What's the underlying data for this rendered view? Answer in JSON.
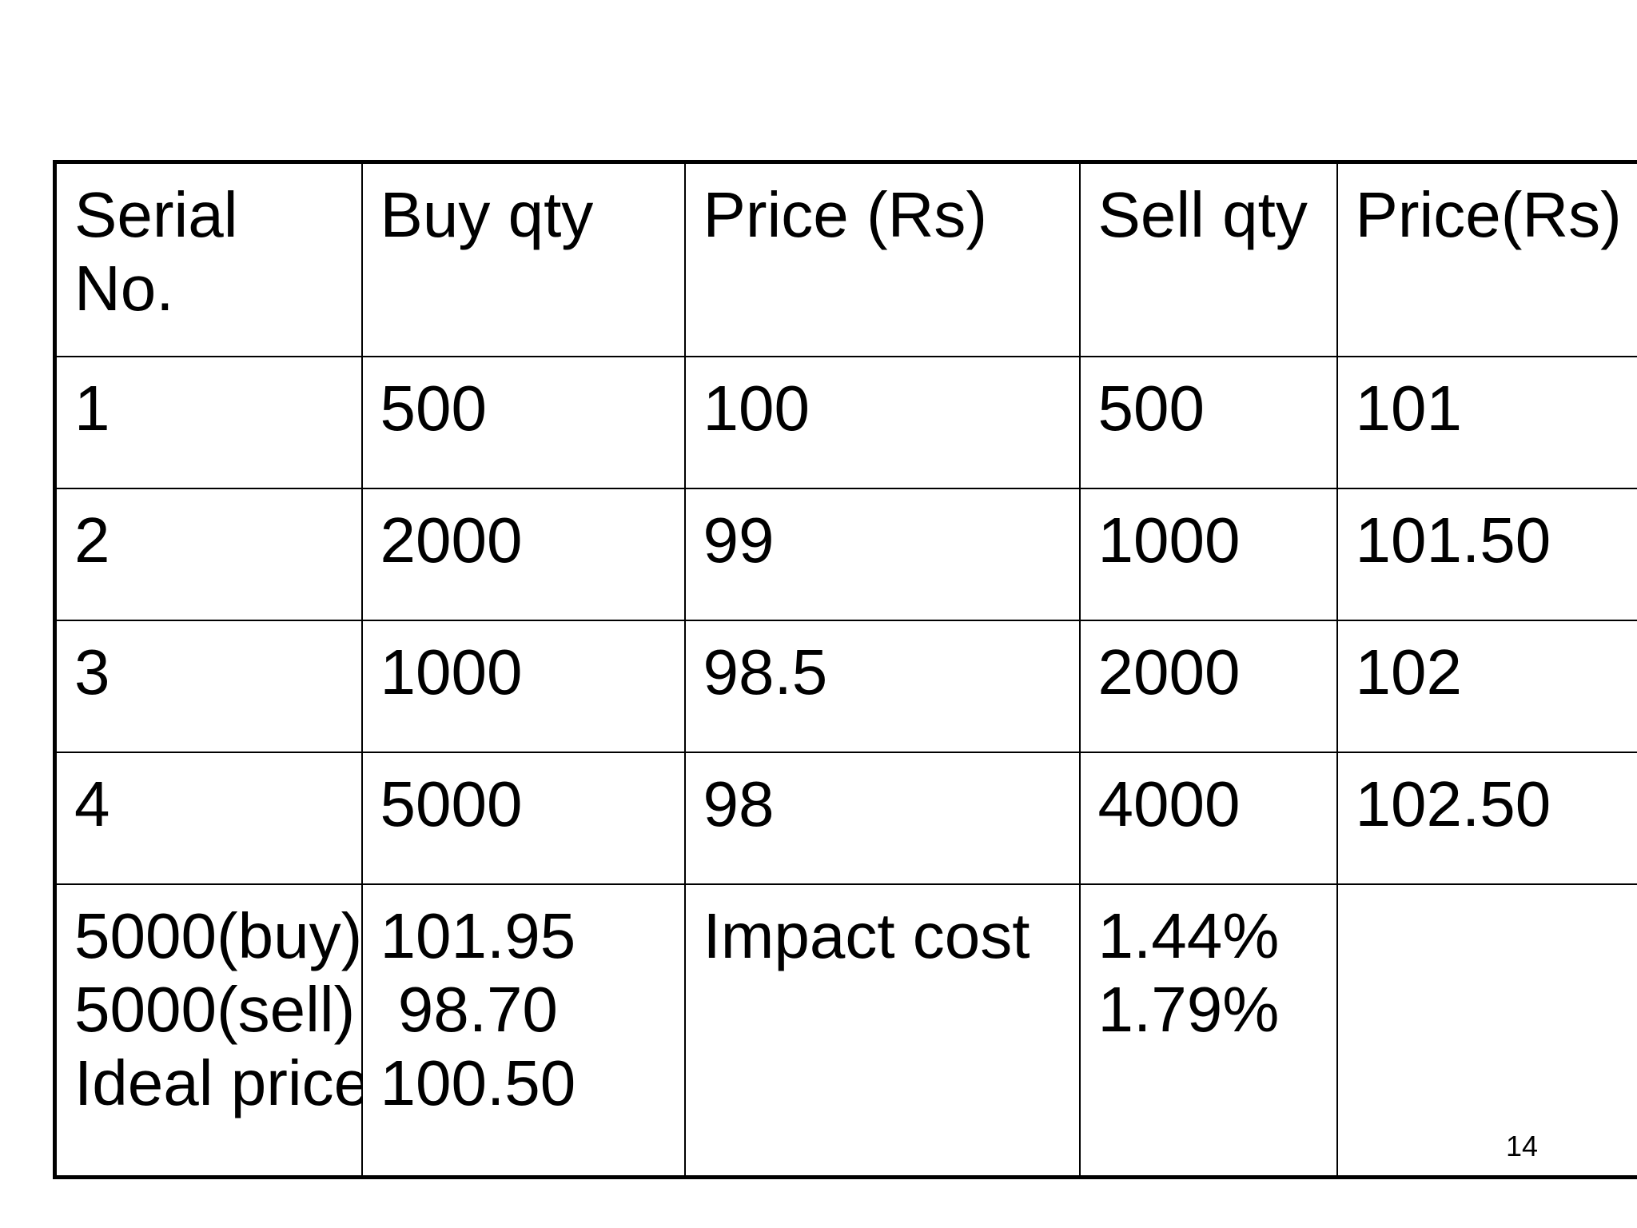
{
  "table": {
    "headers": [
      "Serial\nNo.",
      "Buy qty",
      "Price (Rs)",
      "Sell qty",
      "Price(Rs)"
    ],
    "rows": [
      [
        "1",
        "500",
        "100",
        "500",
        "101"
      ],
      [
        "2",
        "2000",
        "99",
        "1000",
        "101.50"
      ],
      [
        "3",
        "1000",
        "98.5",
        "2000",
        "102"
      ],
      [
        "4",
        "5000",
        "98",
        "4000",
        "102.50"
      ]
    ],
    "summary": {
      "labels": [
        "5000(buy)",
        "5000(sell)",
        "Ideal price"
      ],
      "values": [
        "101.95",
        " 98.70",
        "100.50"
      ],
      "impact_label": "Impact cost",
      "impact_values": [
        "1.44%",
        "1.79%"
      ]
    }
  },
  "page_number": "14"
}
